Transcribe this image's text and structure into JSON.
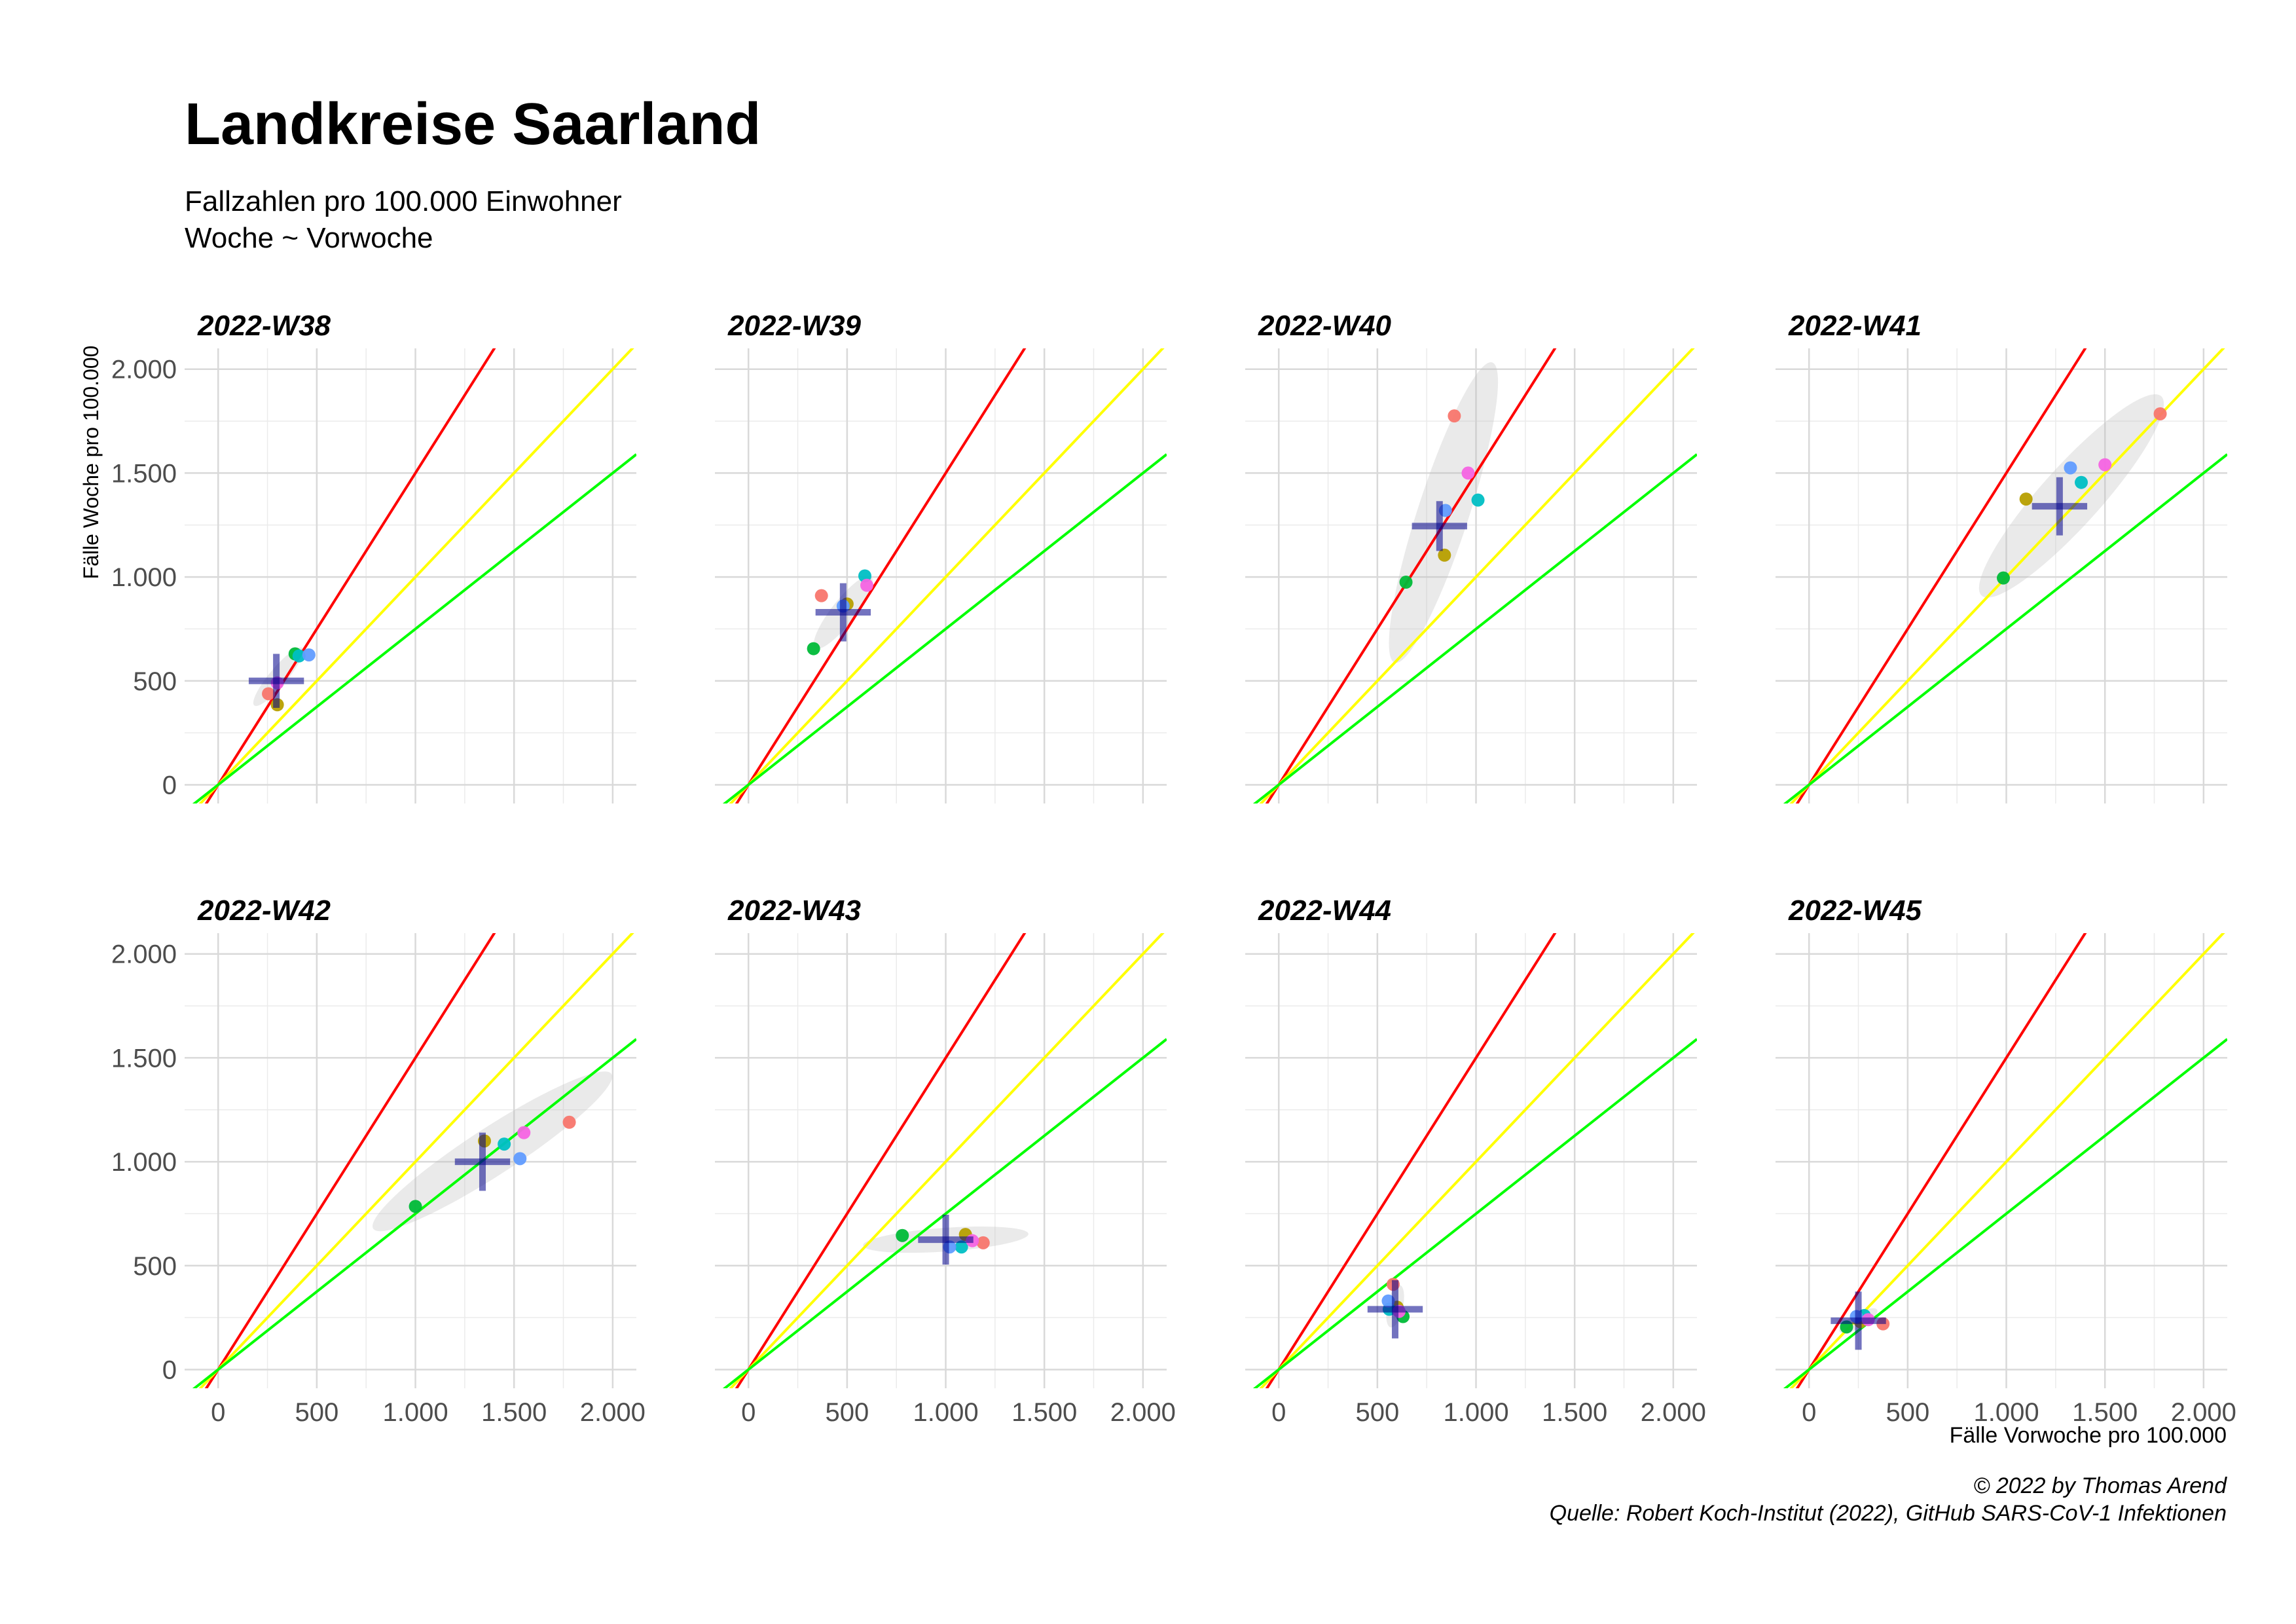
{
  "chart_data": {
    "type": "scatter",
    "title": "Landkreise Saarland",
    "subtitle": [
      "Fallzahlen pro 100.000 Einwohner",
      "Woche ~ Vorwoche"
    ],
    "xlabel": "Fälle Vorwoche pro 100.000",
    "ylabel": "Fälle Woche pro 100.000",
    "xlim": [
      -170,
      2120
    ],
    "ylim": [
      -90,
      2100
    ],
    "ticks": [
      0,
      500,
      1000,
      1500,
      2000
    ],
    "tick_labels": [
      "0",
      "500",
      "1.000",
      "1.500",
      "2.000"
    ],
    "grid": true,
    "reference_lines": [
      {
        "slope": 1.5,
        "color": "#ff0000"
      },
      {
        "slope": 1.0,
        "color": "#ffff00"
      },
      {
        "slope": 0.75,
        "color": "#00ff00"
      }
    ],
    "point_colors": [
      "#f8766d",
      "#b79f00",
      "#00ba38",
      "#00bfc4",
      "#619cff",
      "#f564e3"
    ],
    "marker_color": "#00008b",
    "ellipse_color": "#bebebe",
    "facets": [
      {
        "label": "2022-W38",
        "points": [
          [
            255,
            438
          ],
          [
            300,
            385
          ],
          [
            390,
            630
          ],
          [
            410,
            620
          ],
          [
            460,
            625
          ],
          [
            300,
            490
          ]
        ],
        "mean": [
          295,
          500
        ],
        "spread": [
          140,
          130
        ],
        "ellipse": {
          "cx": 305,
          "cy": 520,
          "rx": 190,
          "ry": 45,
          "angle": -50
        }
      },
      {
        "label": "2022-W39",
        "points": [
          [
            370,
            910
          ],
          [
            500,
            870
          ],
          [
            330,
            655
          ],
          [
            590,
            1005
          ],
          [
            480,
            860
          ],
          [
            600,
            960
          ]
        ],
        "mean": [
          480,
          830
        ],
        "spread": [
          140,
          140
        ],
        "ellipse": {
          "cx": 480,
          "cy": 830,
          "rx": 230,
          "ry": 60,
          "angle": -52
        }
      },
      {
        "label": "2022-W40",
        "points": [
          [
            890,
            1775
          ],
          [
            840,
            1105
          ],
          [
            645,
            975
          ],
          [
            1010,
            1370
          ],
          [
            845,
            1320
          ],
          [
            960,
            1500
          ]
        ],
        "mean": [
          815,
          1245
        ],
        "spread": [
          140,
          120
        ],
        "ellipse": {
          "cx": 835,
          "cy": 1310,
          "rx": 800,
          "ry": 130,
          "angle": -72
        }
      },
      {
        "label": "2022-W41",
        "points": [
          [
            1780,
            1785
          ],
          [
            1100,
            1375
          ],
          [
            985,
            995
          ],
          [
            1380,
            1455
          ],
          [
            1325,
            1525
          ],
          [
            1500,
            1540
          ]
        ],
        "mean": [
          1270,
          1340
        ],
        "spread": [
          140,
          140
        ],
        "ellipse": {
          "cx": 1330,
          "cy": 1390,
          "rx": 680,
          "ry": 150,
          "angle": -48
        }
      },
      {
        "label": "2022-W42",
        "points": [
          [
            1780,
            1190
          ],
          [
            1350,
            1100
          ],
          [
            1000,
            785
          ],
          [
            1450,
            1085
          ],
          [
            1530,
            1015
          ],
          [
            1550,
            1140
          ]
        ],
        "mean": [
          1340,
          1000
        ],
        "spread": [
          140,
          140
        ],
        "ellipse": {
          "cx": 1390,
          "cy": 1050,
          "rx": 720,
          "ry": 120,
          "angle": -33
        }
      },
      {
        "label": "2022-W43",
        "points": [
          [
            1190,
            610
          ],
          [
            1100,
            650
          ],
          [
            780,
            645
          ],
          [
            1080,
            590
          ],
          [
            1020,
            590
          ],
          [
            1135,
            620
          ]
        ],
        "mean": [
          1000,
          625
        ],
        "spread": [
          140,
          120
        ],
        "ellipse": {
          "cx": 1000,
          "cy": 625,
          "rx": 420,
          "ry": 60,
          "angle": -4
        }
      },
      {
        "label": "2022-W44",
        "points": [
          [
            580,
            410
          ],
          [
            600,
            300
          ],
          [
            630,
            255
          ],
          [
            560,
            290
          ],
          [
            555,
            330
          ],
          [
            610,
            280
          ]
        ],
        "mean": [
          590,
          290
        ],
        "spread": [
          140,
          140
        ],
        "ellipse": {
          "cx": 590,
          "cy": 305,
          "rx": 110,
          "ry": 40,
          "angle": -78
        }
      },
      {
        "label": "2022-W45",
        "points": [
          [
            375,
            220
          ],
          [
            260,
            230
          ],
          [
            190,
            205
          ],
          [
            280,
            260
          ],
          [
            240,
            255
          ],
          [
            300,
            240
          ]
        ],
        "mean": [
          250,
          235
        ],
        "spread": [
          140,
          140
        ],
        "ellipse": {
          "cx": 250,
          "cy": 235,
          "rx": 110,
          "ry": 35,
          "angle": -30
        }
      }
    ]
  },
  "caption": {
    "copyright": "© 2022 by Thomas Arend",
    "source": "Quelle: Robert Koch-Institut (2022), GitHub SARS-CoV-1 Infektionen"
  }
}
